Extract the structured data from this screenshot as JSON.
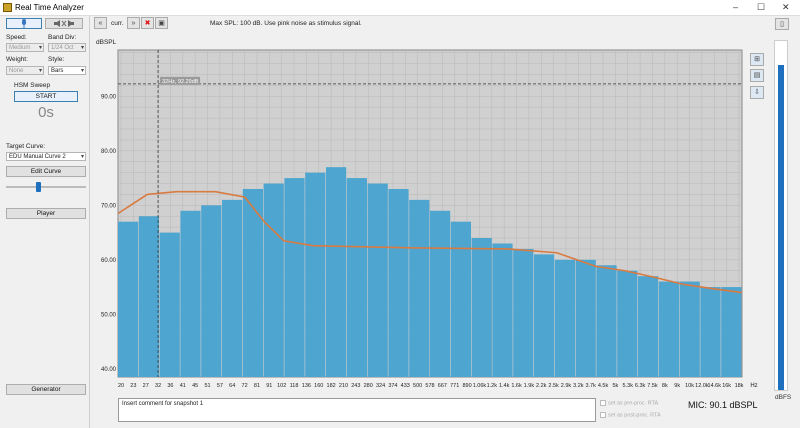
{
  "window": {
    "title": "Real Time Analyzer",
    "minimize": "–",
    "maximize": "☐",
    "close": "✕"
  },
  "left_panel": {
    "speed_label": "Speed:",
    "speed_value": "Medium",
    "band_div_label": "Band Div:",
    "band_div_value": "1/24 Oct",
    "weight_label": "Weight:",
    "weight_value": "None",
    "style_label": "Style:",
    "style_value": "Bars",
    "hsm_sweep_label": "HSM Sweep",
    "start_button": "START",
    "timer": "0s",
    "target_curve_label": "Target Curve:",
    "target_curve_value": "EDU Manual Curve 2",
    "edit_curve_button": "Edit Curve",
    "slider_position": 0.4,
    "player_button": "Player",
    "generator_button": "Generator"
  },
  "toolbar": {
    "curr_label": "curr.",
    "message": "Max SPL: 100 dB. Use pink noise as stimulus signal."
  },
  "chart_data": {
    "type": "bar",
    "ylabel": "dBSPL",
    "xunit": "Hz",
    "ylim": [
      38.5,
      98.5
    ],
    "yticks": [
      40,
      50,
      60,
      70,
      80,
      90
    ],
    "ytick_labels": [
      "40.00",
      "50.00",
      "60.00",
      "70.00",
      "80.00",
      "90.00"
    ],
    "xtick_labels": [
      "20",
      "23",
      "27",
      "32",
      "36",
      "41",
      "45",
      "51",
      "57",
      "64",
      "72",
      "81",
      "91",
      "102",
      "118",
      "136",
      "160",
      "182",
      "210",
      "243",
      "280",
      "324",
      "374",
      "433",
      "500",
      "578",
      "667",
      "771",
      "890",
      "1.06k",
      "1.2k",
      "1.4k",
      "1.6k",
      "1.9k",
      "2.2k",
      "2.5k",
      "2.9k",
      "3.2k",
      "3.7k",
      "4.5k",
      "5k",
      "5.3k",
      "6.3k",
      "7.5k",
      "8k",
      "9k",
      "10k",
      "12.0k",
      "14.6k",
      "16k",
      "18k"
    ],
    "cursor_label": "32Hz, 92.29dB",
    "cursor": {
      "x_index": 3,
      "y": 92.29
    },
    "peak_hold_level": 92.29,
    "series": [
      {
        "kind": "spectrum",
        "values": [
          67,
          68,
          65,
          69,
          70,
          71,
          73,
          74,
          75,
          76,
          77,
          75,
          74,
          73,
          71,
          69,
          67,
          64,
          63,
          62,
          61,
          60,
          60,
          59,
          58,
          57,
          56,
          56,
          55,
          55
        ]
      },
      {
        "kind": "target",
        "points": [
          [
            0,
            68.5
          ],
          [
            3,
            72
          ],
          [
            6,
            72.5
          ],
          [
            10,
            72.5
          ],
          [
            13,
            71.5
          ],
          [
            15,
            67
          ],
          [
            17,
            63.5
          ],
          [
            20,
            62.6
          ],
          [
            30,
            62.2
          ],
          [
            40,
            62
          ],
          [
            45,
            61.3
          ],
          [
            49,
            58.8
          ],
          [
            52,
            58
          ],
          [
            55,
            56.8
          ],
          [
            58,
            55.5
          ],
          [
            61,
            54.7
          ],
          [
            64,
            54
          ]
        ]
      }
    ],
    "colors": {
      "bars": "#4ea5cf",
      "target": "#d97b41",
      "plot_bg": "#d0d0d0",
      "grid": "#b8b8b8"
    }
  },
  "right_panel": {
    "unit_label": "dBFS",
    "level_fraction": 0.93,
    "meter_color": "#1f6fbf"
  },
  "bottom": {
    "comment_text": "Insert comment for snapshot 1",
    "set_pre_proc": "set as pre-proc. RTA",
    "set_post_proc": "set as post-proc. RTA",
    "mic_readout": "MIC: 90.1 dBSPL"
  }
}
